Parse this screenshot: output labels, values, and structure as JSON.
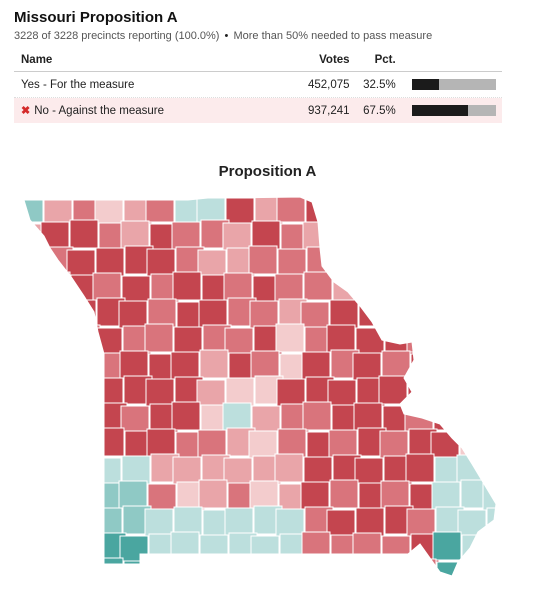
{
  "header": {
    "title": "Missouri Proposition A",
    "reporting": "3228 of 3228 precincts reporting (100.0%)",
    "separator": "•",
    "note": "More than 50% needed to pass measure"
  },
  "table": {
    "columns": [
      "Name",
      "Votes",
      "Pct."
    ],
    "rows": [
      {
        "name": "Yes - For the measure",
        "votes": "452,075",
        "pct": "32.5%",
        "share": 0.325,
        "defeated": false
      },
      {
        "name": "No - Against the measure",
        "votes": "937,241",
        "pct": "67.5%",
        "share": 0.675,
        "defeated": true
      }
    ]
  },
  "map": {
    "title": "Proposition A",
    "colors": {
      "no_strong": "#c4454f",
      "no_medium": "#d9747c",
      "no_light": "#e9a5a9",
      "no_faint": "#f3cccd",
      "yes_faint": "#bcdfdd",
      "yes_light": "#8fc9c5",
      "yes_strong": "#4aa6a0"
    },
    "icons": {
      "defeated": "x-mark-icon"
    }
  }
}
